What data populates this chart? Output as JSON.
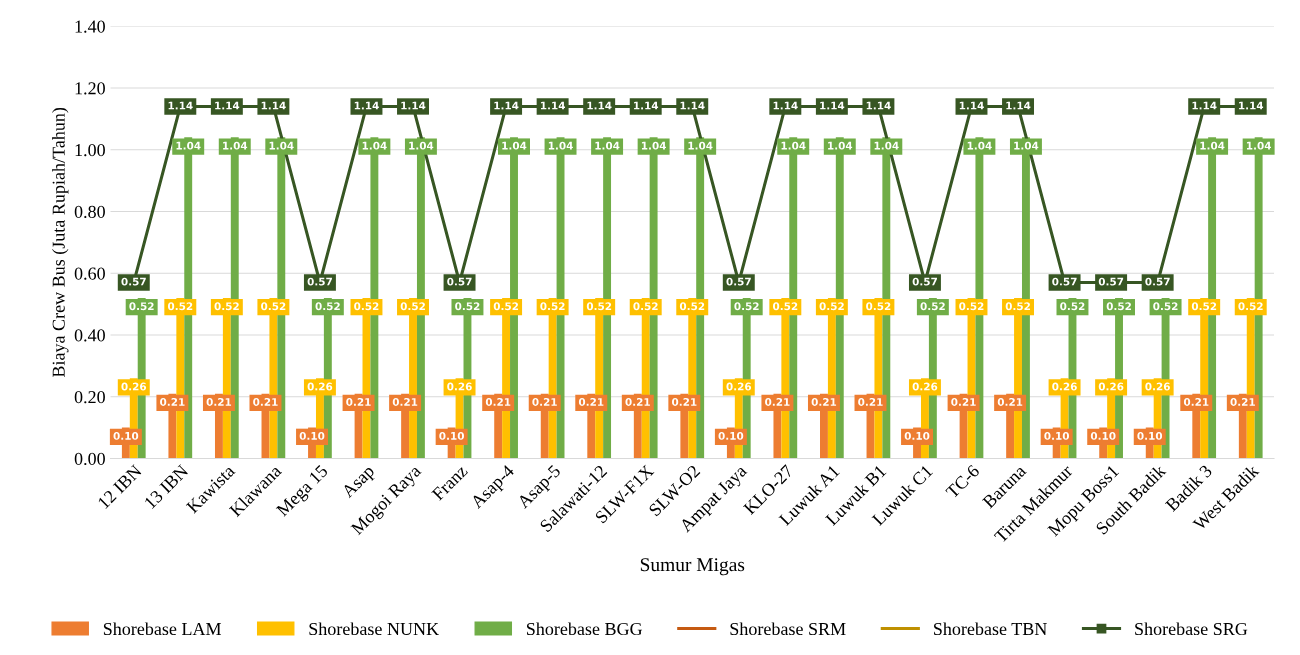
{
  "chart_data": {
    "type": "bar",
    "xlabel": "Sumur Migas",
    "ylabel": "Biaya Crew Bus (Juta Rupiah/Tahun)",
    "categories": [
      "12 IBN",
      "13 IBN",
      "Kawista",
      "Klawana",
      "Mega 15",
      "Asap",
      "Mogoi Raya",
      "Franz",
      "Asap-4",
      "Asap-5",
      "Salawati-12",
      "SLW-F1X",
      "SLW-O2",
      "Ampat Jaya",
      "KLO-27",
      "Luwuk A1",
      "Luwuk B1",
      "Luwuk C1",
      "TC-6",
      "Baruna",
      "Tirta Makmur",
      "Mopu Boss1",
      "South Badik",
      "Badik 3",
      "West Badik"
    ],
    "series": [
      {
        "name": "Shorebase LAM",
        "color": "#ed7d31",
        "values": [
          0.1,
          0.21,
          0.21,
          0.21,
          0.1,
          0.21,
          0.21,
          0.1,
          0.21,
          0.21,
          0.21,
          0.21,
          0.21,
          0.1,
          0.21,
          0.21,
          0.21,
          0.1,
          0.21,
          0.21,
          0.1,
          0.1,
          0.1,
          0.21,
          0.21
        ],
        "value_labels": [
          "0.10",
          "0.21",
          "0.21",
          "0.21",
          "0.10",
          "0.21",
          "0.21",
          "0.10",
          "0.21",
          "0.21",
          "0.21",
          "0.21",
          "0.21",
          "0.10",
          "0.21",
          "0.21",
          "0.21",
          "0.10",
          "0.21",
          "0.21",
          "0.10",
          "0.10",
          "0.10",
          "0.21",
          "0.21"
        ]
      },
      {
        "name": "Shorebase NUNK",
        "color": "#ffc000",
        "values": [
          0.26,
          0.52,
          0.52,
          0.52,
          0.26,
          0.52,
          0.52,
          0.26,
          0.52,
          0.52,
          0.52,
          0.52,
          0.52,
          0.26,
          0.52,
          0.52,
          0.52,
          0.26,
          0.52,
          0.52,
          0.26,
          0.26,
          0.26,
          0.52,
          0.52
        ],
        "value_labels": [
          "0.26",
          "0.52",
          "0.52",
          "0.52",
          "0.26",
          "0.52",
          "0.52",
          "0.26",
          "0.52",
          "0.52",
          "0.52",
          "0.52",
          "0.52",
          "0.26",
          "0.52",
          "0.52",
          "0.52",
          "0.26",
          "0.52",
          "0.52",
          "0.26",
          "0.26",
          "0.26",
          "0.52",
          "0.52"
        ]
      },
      {
        "name": "Shorebase BGG",
        "color": "#70ad47",
        "values": [
          0.52,
          1.04,
          1.04,
          1.04,
          0.52,
          1.04,
          1.04,
          0.52,
          1.04,
          1.04,
          1.04,
          1.04,
          1.04,
          0.52,
          1.04,
          1.04,
          1.04,
          0.52,
          1.04,
          1.04,
          0.52,
          0.52,
          0.52,
          1.04,
          1.04
        ],
        "value_labels": [
          "0.52",
          "1.04",
          "1.04",
          "1.04",
          "0.52",
          "1.04",
          "1.04",
          "0.52",
          "1.04",
          "1.04",
          "1.04",
          "1.04",
          "1.04",
          "0.52",
          "1.04",
          "1.04",
          "1.04",
          "0.52",
          "1.04",
          "1.04",
          "0.52",
          "0.52",
          "0.52",
          "1.04",
          "1.04"
        ]
      },
      {
        "name": "Shorebase SRM",
        "color": "#c55a11",
        "type": "line",
        "values": [
          null,
          null,
          null,
          null,
          null,
          null,
          null,
          null,
          null,
          null,
          null,
          null,
          null,
          null,
          null,
          null,
          null,
          null,
          null,
          null,
          null,
          null,
          null,
          null,
          null
        ]
      },
      {
        "name": "Shorebase TBN",
        "color": "#bf9000",
        "type": "line",
        "values": [
          null,
          null,
          null,
          null,
          null,
          null,
          null,
          null,
          null,
          null,
          null,
          null,
          null,
          null,
          null,
          null,
          null,
          null,
          null,
          null,
          null,
          null,
          null,
          null,
          null
        ]
      },
      {
        "name": "Shorebase SRG",
        "color": "#375623",
        "type": "line",
        "values": [
          0.57,
          1.14,
          1.14,
          1.14,
          0.57,
          1.14,
          1.14,
          0.57,
          1.14,
          1.14,
          1.14,
          1.14,
          1.14,
          0.57,
          1.14,
          1.14,
          1.14,
          0.57,
          1.14,
          1.14,
          0.57,
          0.57,
          0.57,
          1.14,
          1.14
        ],
        "value_labels": [
          "0.57",
          "1.14",
          "1.14",
          "1.14",
          "0.57",
          "1.14",
          "1.14",
          "0.57",
          "1.14",
          "1.14",
          "1.14",
          "1.14",
          "1.14",
          "0.57",
          "1.14",
          "1.14",
          "1.14",
          "0.57",
          "1.14",
          "1.14",
          "0.57",
          "0.57",
          "0.57",
          "1.14",
          "1.14"
        ]
      }
    ],
    "ylim": [
      0,
      1.4
    ],
    "yticks": [
      {
        "value": 0,
        "label": "0.00"
      },
      {
        "value": 0.2,
        "label": "0.20"
      },
      {
        "value": 0.4,
        "label": "0.40"
      },
      {
        "value": 0.6,
        "label": "0.60"
      },
      {
        "value": 0.8,
        "label": "0.80"
      },
      {
        "value": 1.0,
        "label": "1.00"
      },
      {
        "value": 1.2,
        "label": "1.20"
      },
      {
        "value": 1.4,
        "label": "1.40"
      }
    ],
    "grid": "y",
    "legend": "bottom",
    "marker": "square",
    "line_style": "solid"
  }
}
